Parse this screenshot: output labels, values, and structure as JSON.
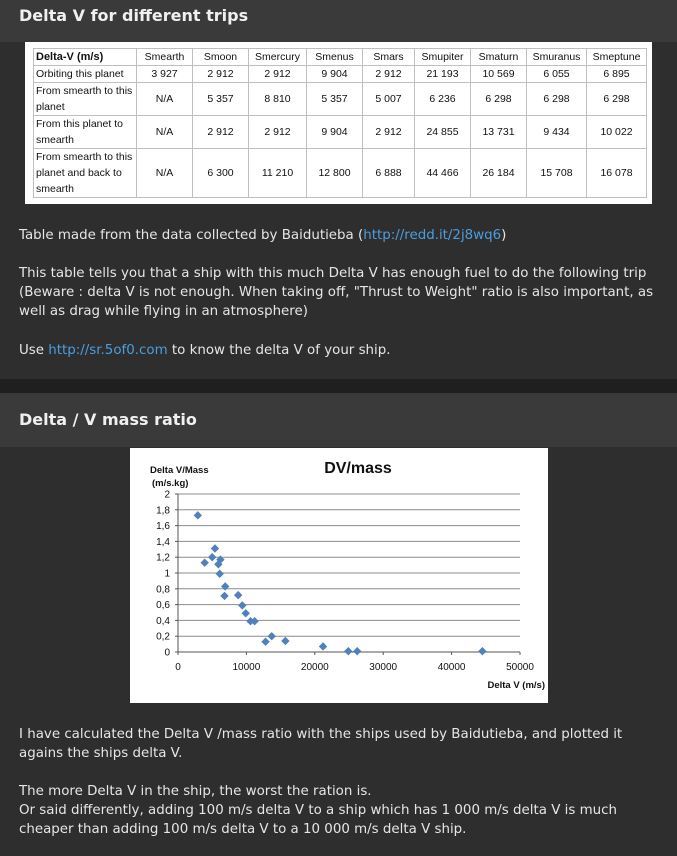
{
  "section1": {
    "title": "Delta V for different trips",
    "table": {
      "columns": [
        "Delta-V (m/s)",
        "Smearth",
        "Smoon",
        "Smercury",
        "Smenus",
        "Smars",
        "Smupiter",
        "Smaturn",
        "Smuranus",
        "Smeptune"
      ],
      "rows": [
        {
          "label": "Orbiting this planet",
          "values": [
            "3 927",
            "2 912",
            "2 912",
            "9 904",
            "2 912",
            "21 193",
            "10 569",
            "6 055",
            "6 895"
          ]
        },
        {
          "label": "From smearth to this planet",
          "values": [
            "N/A",
            "5 357",
            "8 810",
            "5 357",
            "5 007",
            "6 236",
            "6 298",
            "6 298",
            "6 298"
          ]
        },
        {
          "label": "From this planet to smearth",
          "values": [
            "N/A",
            "2 912",
            "2 912",
            "9 904",
            "2 912",
            "24 855",
            "13 731",
            "9 434",
            "10 022"
          ]
        },
        {
          "label": "From smearth to this planet and back to smearth",
          "values": [
            "N/A",
            "6 300",
            "11 210",
            "12 800",
            "6 888",
            "44 466",
            "26 184",
            "15 708",
            "16 078"
          ]
        }
      ]
    },
    "para1_pre": "Table made from the data collected by Baidutieba (",
    "para1_link": "http://redd.it/2j8wq6",
    "para1_post": ")",
    "para2": "This table tells you that a ship with this much Delta V has enough fuel to do the following trip (Beware : delta V is not enough. When taking off, \"Thrust to Weight\" ratio is also important, as well as drag while flying in an atmosphere)",
    "para3_pre": "Use ",
    "para3_link": "http://sr.5of0.com",
    "para3_post": " to know the delta V of your ship."
  },
  "section2": {
    "title": "Delta / V mass ratio",
    "para1": "I have calculated the Delta V /mass ratio with the ships used by Baidutieba, and plotted it agains the ships delta V.",
    "para2a": "The more Delta V in the ship, the worst the ration is.",
    "para2b": "Or said differently, adding 100 m/s delta V to a ship which has 1 000 m/s delta V is much cheaper than adding 100 m/s delta V to a 10 000 m/s delta V ship."
  },
  "chart_data": {
    "type": "scatter",
    "title": "DV/mass",
    "ylabel": "Delta V/Mass (m/s.kg)",
    "xlabel": "Delta V (m/s)",
    "xlim": [
      0,
      50000
    ],
    "ylim": [
      0,
      2
    ],
    "xticks": [
      0,
      10000,
      20000,
      30000,
      40000,
      50000
    ],
    "yticks": [
      "0",
      "0,2",
      "0,4",
      "0,6",
      "0,8",
      "1",
      "1,2",
      "1,4",
      "1,6",
      "1,8",
      "2"
    ],
    "grid": true,
    "marker_color": "#4f81bd",
    "points": [
      {
        "x": 2900,
        "y": 1.73
      },
      {
        "x": 3900,
        "y": 1.13
      },
      {
        "x": 5000,
        "y": 1.2
      },
      {
        "x": 5400,
        "y": 1.31
      },
      {
        "x": 5900,
        "y": 1.11
      },
      {
        "x": 6200,
        "y": 1.17
      },
      {
        "x": 6100,
        "y": 0.99
      },
      {
        "x": 6900,
        "y": 0.83
      },
      {
        "x": 6800,
        "y": 0.71
      },
      {
        "x": 8800,
        "y": 0.72
      },
      {
        "x": 9400,
        "y": 0.59
      },
      {
        "x": 9900,
        "y": 0.49
      },
      {
        "x": 10600,
        "y": 0.39
      },
      {
        "x": 11200,
        "y": 0.39
      },
      {
        "x": 12800,
        "y": 0.13
      },
      {
        "x": 13700,
        "y": 0.2
      },
      {
        "x": 15700,
        "y": 0.14
      },
      {
        "x": 21200,
        "y": 0.07
      },
      {
        "x": 24900,
        "y": 0.01
      },
      {
        "x": 26200,
        "y": 0.01
      },
      {
        "x": 44500,
        "y": 0.01
      }
    ]
  }
}
